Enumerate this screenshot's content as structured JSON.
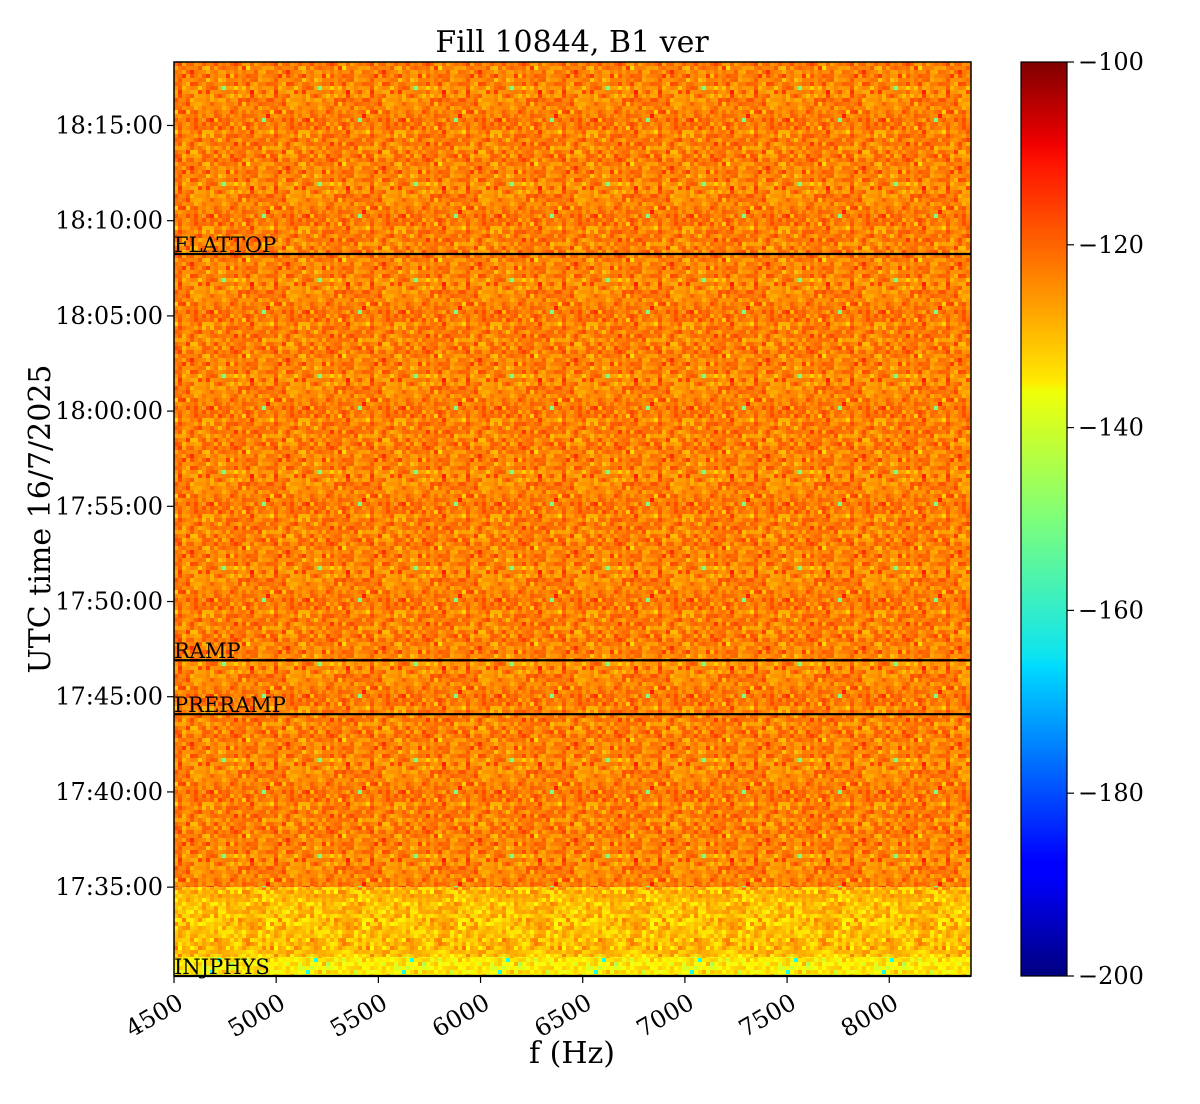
{
  "chart_data": {
    "type": "heatmap",
    "title": "Fill 10844, B1 ver",
    "xlabel": "f (Hz)",
    "ylabel": "UTC time 16/7/2025",
    "xlim": [
      4500,
      8400
    ],
    "ylim": [
      "17:30:20",
      "18:18:20"
    ],
    "x_ticks": [
      4500,
      5000,
      5500,
      6000,
      6500,
      7000,
      7500,
      8000
    ],
    "x_tick_labels": [
      "4500",
      "5000",
      "5500",
      "6000",
      "6500",
      "7000",
      "7500",
      "8000"
    ],
    "y_ticks": [
      "17:35:00",
      "17:40:00",
      "17:45:00",
      "17:50:00",
      "17:55:00",
      "18:00:00",
      "18:05:00",
      "18:10:00",
      "18:15:00"
    ],
    "colorbar": {
      "colormap": "jet",
      "range": [
        -200,
        -100
      ],
      "ticks": [
        -100,
        -120,
        -140,
        -160,
        -180,
        -200
      ],
      "tick_labels": [
        "−100",
        "−120",
        "−140",
        "−160",
        "−180",
        "−200"
      ]
    },
    "markers": [
      {
        "label": "INJPHYS",
        "time": "17:30:20"
      },
      {
        "label": "PRERAMP",
        "time": "17:44:05"
      },
      {
        "label": "RAMP",
        "time": "17:46:55"
      },
      {
        "label": "FLATTOP",
        "time": "18:08:15"
      }
    ],
    "intensity_regions": [
      {
        "from": "17:30:20",
        "to": "17:31:20",
        "mean_db": -136
      },
      {
        "from": "17:31:20",
        "to": "17:35:00",
        "mean_db": -131
      },
      {
        "from": "17:35:00",
        "to": "18:18:20",
        "mean_db": -125
      }
    ]
  }
}
